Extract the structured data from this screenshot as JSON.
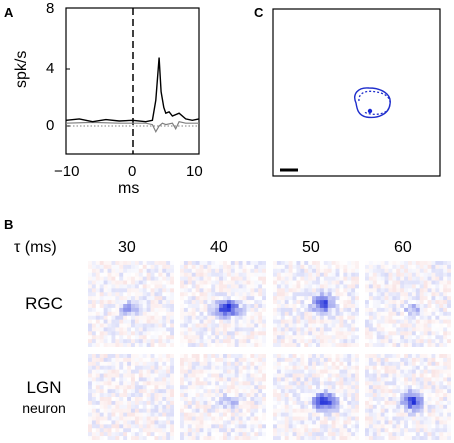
{
  "panel_a": {
    "letter": "A",
    "ylabel": "spk/s",
    "xlabel": "ms",
    "yticks": [
      "0",
      "4",
      "8"
    ],
    "xticks": [
      "−10",
      "0",
      "10"
    ]
  },
  "panel_b": {
    "letter": "B",
    "tau_label": "τ (ms)",
    "delays": [
      "30",
      "40",
      "50",
      "60"
    ],
    "rows": [
      {
        "label_line1": "RGC",
        "label_line2": ""
      },
      {
        "label_line1": "LGN",
        "label_line2": "neuron"
      }
    ]
  },
  "panel_c": {
    "letter": "C"
  },
  "colors": {
    "trace_main": "#000000",
    "trace_secondary": "#808080",
    "rf_outline": "#1f2ecc",
    "rf_blue": "#1a2bd6",
    "noise_red": "#e07070"
  },
  "chart_data": {
    "type": "line",
    "xlabel": "ms",
    "ylabel": "spk/s",
    "xlim": [
      -10,
      10
    ],
    "ylim": [
      -1,
      8
    ],
    "series": [
      {
        "x": [
          -10,
          -8,
          -6,
          -4,
          -2,
          0,
          2,
          3,
          3.5,
          4,
          4.3,
          4.7,
          5,
          5.5,
          6,
          7,
          8,
          9,
          10
        ],
        "values": [
          0.4,
          0.5,
          0.3,
          0.45,
          0.35,
          0.4,
          0.3,
          0.4,
          1.8,
          4.8,
          2.4,
          1.3,
          0.9,
          1.0,
          0.7,
          0.9,
          0.5,
          0.4,
          0.5
        ]
      },
      {
        "x": [
          -10,
          -6,
          -2,
          0,
          2,
          3,
          3.5,
          4,
          4.5,
          5,
          6,
          6.5,
          7,
          8,
          10
        ],
        "values": [
          0.2,
          0.25,
          0.2,
          0.2,
          0.2,
          0.1,
          -0.4,
          0.0,
          0.2,
          0.1,
          0.2,
          -0.2,
          0.3,
          0.2,
          0.2
        ]
      }
    ]
  }
}
